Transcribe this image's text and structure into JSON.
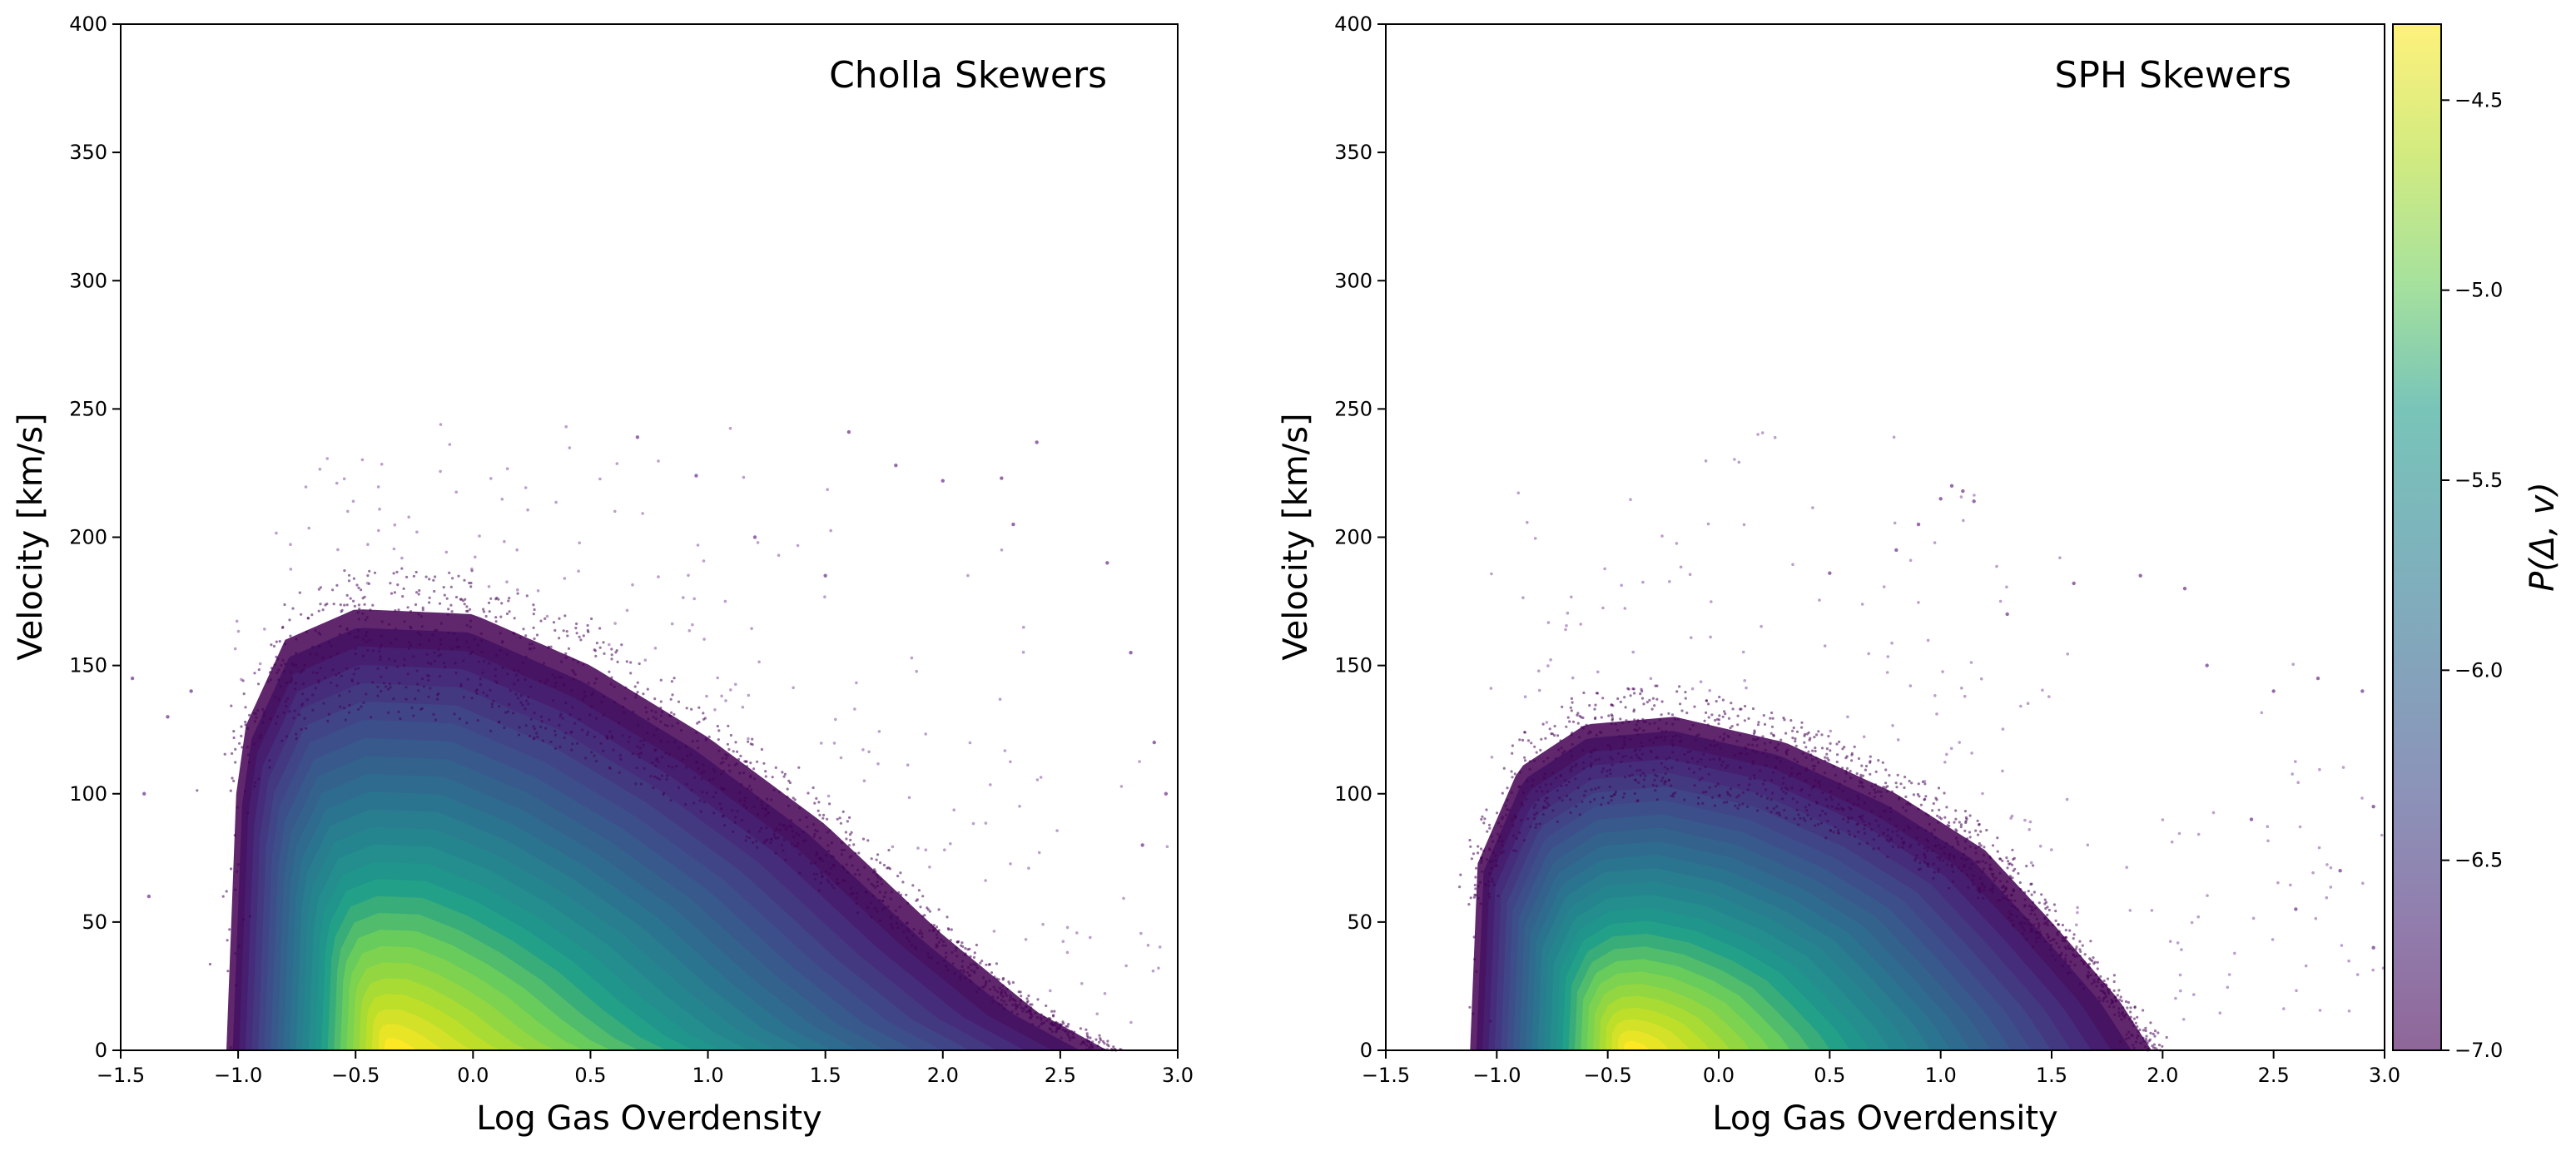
{
  "chart_data": [
    {
      "type": "scatter",
      "title": "Cholla Skewers",
      "xlabel": "Log Gas Overdensity",
      "ylabel": "Velocity [km/s]",
      "xlim": [
        -1.5,
        3.0
      ],
      "ylim": [
        0,
        400
      ],
      "xticks": [
        -1.5,
        -1.0,
        -0.5,
        0.0,
        0.5,
        1.0,
        1.5,
        2.0,
        2.5,
        3.0
      ],
      "xtick_labels": [
        "−1.5",
        "−1.0",
        "−0.5",
        "0.0",
        "0.5",
        "1.0",
        "1.5",
        "2.0",
        "2.5",
        "3.0"
      ],
      "yticks": [
        0,
        50,
        100,
        150,
        200,
        250,
        300,
        350,
        400
      ],
      "ytick_labels": [
        "0",
        "50",
        "100",
        "150",
        "200",
        "250",
        "300",
        "350",
        "400"
      ],
      "distribution": {
        "peak": {
          "x": -0.35,
          "y": 10
        },
        "outer_envelope": [
          {
            "x": -1.05,
            "y": 0
          },
          {
            "x": -1.0,
            "y": 120
          },
          {
            "x": -0.8,
            "y": 160
          },
          {
            "x": -0.5,
            "y": 172
          },
          {
            "x": 0.0,
            "y": 170
          },
          {
            "x": 0.5,
            "y": 150
          },
          {
            "x": 1.0,
            "y": 122
          },
          {
            "x": 1.5,
            "y": 88
          },
          {
            "x": 2.0,
            "y": 45
          },
          {
            "x": 2.4,
            "y": 15
          },
          {
            "x": 2.7,
            "y": 0
          }
        ],
        "high_density_core": [
          {
            "x": -0.9,
            "y": 0
          },
          {
            "x": -0.8,
            "y": 60
          },
          {
            "x": -0.4,
            "y": 90
          },
          {
            "x": 0.2,
            "y": 80
          },
          {
            "x": 0.7,
            "y": 45
          },
          {
            "x": 1.0,
            "y": 0
          }
        ],
        "sparse_outliers": [
          {
            "x": -1.45,
            "y": 145
          },
          {
            "x": -1.4,
            "y": 100
          },
          {
            "x": -1.3,
            "y": 130
          },
          {
            "x": -1.2,
            "y": 140
          },
          {
            "x": -1.38,
            "y": 60
          },
          {
            "x": 0.7,
            "y": 239
          },
          {
            "x": 0.95,
            "y": 224
          },
          {
            "x": 1.6,
            "y": 241
          },
          {
            "x": 1.8,
            "y": 228
          },
          {
            "x": 2.0,
            "y": 222
          },
          {
            "x": 2.25,
            "y": 223
          },
          {
            "x": 2.4,
            "y": 237
          },
          {
            "x": 2.3,
            "y": 205
          },
          {
            "x": 2.7,
            "y": 190
          },
          {
            "x": 2.8,
            "y": 155
          },
          {
            "x": 2.9,
            "y": 120
          },
          {
            "x": 2.85,
            "y": 80
          },
          {
            "x": 2.95,
            "y": 100
          },
          {
            "x": 1.5,
            "y": 185
          },
          {
            "x": 1.2,
            "y": 200
          }
        ]
      }
    },
    {
      "type": "scatter",
      "title": "SPH Skewers",
      "xlabel": "Log Gas Overdensity",
      "ylabel": "Velocity [km/s]",
      "xlim": [
        -1.5,
        3.0
      ],
      "ylim": [
        0,
        400
      ],
      "xticks": [
        -1.5,
        -1.0,
        -0.5,
        0.0,
        0.5,
        1.0,
        1.5,
        2.0,
        2.5,
        3.0
      ],
      "xtick_labels": [
        "−1.5",
        "−1.0",
        "−0.5",
        "0.0",
        "0.5",
        "1.0",
        "1.5",
        "2.0",
        "2.5",
        "3.0"
      ],
      "yticks": [
        0,
        50,
        100,
        150,
        200,
        250,
        300,
        350,
        400
      ],
      "ytick_labels": [
        "0",
        "50",
        "100",
        "150",
        "200",
        "250",
        "300",
        "350",
        "400"
      ],
      "distribution": {
        "peak": {
          "x": -0.4,
          "y": 10
        },
        "outer_envelope": [
          {
            "x": -1.12,
            "y": 0
          },
          {
            "x": -1.1,
            "y": 70
          },
          {
            "x": -0.9,
            "y": 110
          },
          {
            "x": -0.6,
            "y": 127
          },
          {
            "x": -0.2,
            "y": 130
          },
          {
            "x": 0.3,
            "y": 120
          },
          {
            "x": 0.8,
            "y": 100
          },
          {
            "x": 1.2,
            "y": 78
          },
          {
            "x": 1.5,
            "y": 50
          },
          {
            "x": 1.8,
            "y": 20
          },
          {
            "x": 1.95,
            "y": 0
          }
        ],
        "high_density_core": [
          {
            "x": -0.95,
            "y": 0
          },
          {
            "x": -0.85,
            "y": 55
          },
          {
            "x": -0.45,
            "y": 80
          },
          {
            "x": 0.1,
            "y": 70
          },
          {
            "x": 0.6,
            "y": 40
          },
          {
            "x": 0.9,
            "y": 0
          }
        ],
        "sparse_outliers": [
          {
            "x": 1.0,
            "y": 215
          },
          {
            "x": 1.05,
            "y": 220
          },
          {
            "x": 1.1,
            "y": 218
          },
          {
            "x": 1.15,
            "y": 214
          },
          {
            "x": 0.9,
            "y": 205
          },
          {
            "x": 0.8,
            "y": 195
          },
          {
            "x": 0.5,
            "y": 186
          },
          {
            "x": 1.3,
            "y": 170
          },
          {
            "x": 1.6,
            "y": 182
          },
          {
            "x": 1.9,
            "y": 185
          },
          {
            "x": 2.1,
            "y": 180
          },
          {
            "x": 2.2,
            "y": 150
          },
          {
            "x": 2.5,
            "y": 140
          },
          {
            "x": 2.7,
            "y": 145
          },
          {
            "x": 2.9,
            "y": 140
          },
          {
            "x": 2.95,
            "y": 95
          },
          {
            "x": 2.8,
            "y": 70
          },
          {
            "x": 2.6,
            "y": 55
          },
          {
            "x": 2.95,
            "y": 40
          },
          {
            "x": 2.4,
            "y": 90
          }
        ]
      }
    }
  ],
  "colorbar": {
    "label": "P(Δ, v)",
    "range": [
      -7.0,
      -4.3
    ],
    "ticks": [
      -7.0,
      -6.5,
      -6.0,
      -5.5,
      -5.0,
      -4.5
    ],
    "tick_labels": [
      "−7.0",
      "−6.5",
      "−6.0",
      "−5.5",
      "−5.0",
      "−4.5"
    ],
    "colormap": "viridis",
    "colors": [
      "#440154",
      "#482777",
      "#3f4a8a",
      "#31678e",
      "#26838f",
      "#1f9d8a",
      "#6cce5a",
      "#b6de2b",
      "#fee825"
    ],
    "alpha": 0.6
  }
}
